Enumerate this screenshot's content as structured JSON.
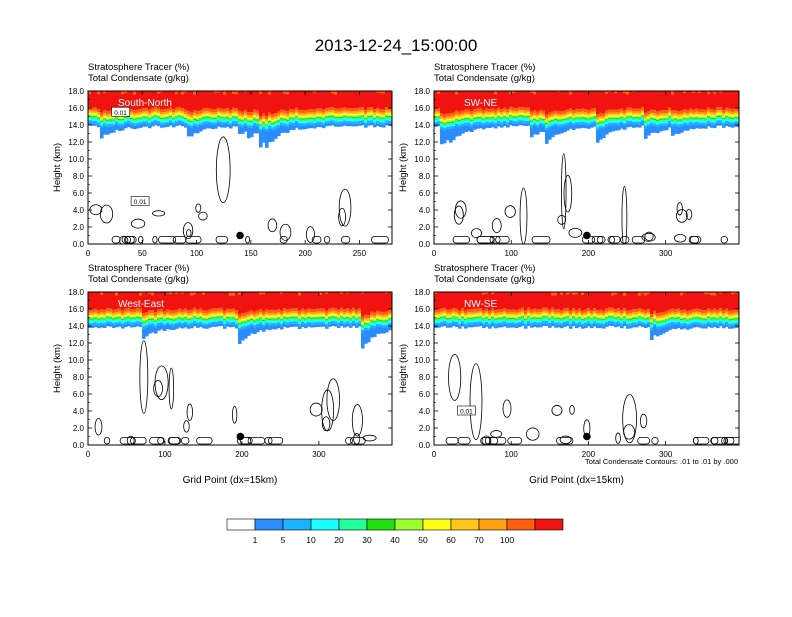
{
  "figure": {
    "title": "2013-12-24_15:00:00",
    "footnote": "Total Condensate Contours: .01 to .01 by .000"
  },
  "colorbar": {
    "labels": [
      "1",
      "5",
      "10",
      "20",
      "30",
      "40",
      "50",
      "60",
      "70",
      "100"
    ],
    "colors": [
      "#ffffff",
      "#2b8cff",
      "#1bb2ff",
      "#19ffff",
      "#23ff9a",
      "#20e012",
      "#9cff2e",
      "#ffff15",
      "#ffc61d",
      "#ffa013",
      "#ff5f0f",
      "#f0130f"
    ]
  },
  "chart_data": [
    {
      "type": "heatmap",
      "panel_label": "South-North",
      "title_lines": [
        "Stratosphere Tracer   (%)",
        "Total Condensate   (g/kg)"
      ],
      "ylabel": "Height (km)",
      "xlabel": "",
      "xlim": [
        0,
        280
      ],
      "ylim": [
        0,
        18
      ],
      "xticks": [
        0,
        50,
        100,
        150,
        200,
        250
      ],
      "yticks": [
        "0.0",
        "2.0",
        "4.0",
        "6.0",
        "8.0",
        "10.0",
        "12.0",
        "14.0",
        "16.0",
        "18.0"
      ],
      "marker_point": [
        140,
        1.0
      ],
      "contour_labels": [
        "0.01",
        "0.01"
      ]
    },
    {
      "type": "heatmap",
      "panel_label": "SW-NE",
      "title_lines": [
        "Stratosphere Tracer   (%)",
        "Total Condensate   (g/kg)"
      ],
      "ylabel": "Height (km)",
      "xlabel": "",
      "xlim": [
        0,
        395
      ],
      "ylim": [
        0,
        18
      ],
      "xticks": [
        0,
        100,
        200,
        300
      ],
      "yticks": [
        "0.0",
        "2.0",
        "4.0",
        "6.0",
        "8.0",
        "10.0",
        "12.0",
        "14.0",
        "16.0",
        "18.0"
      ],
      "marker_point": [
        198,
        1.0
      ],
      "contour_labels": []
    },
    {
      "type": "heatmap",
      "panel_label": "West-East",
      "title_lines": [
        "Stratosphere Tracer   (%)",
        "Total Condensate   (g/kg)"
      ],
      "ylabel": "Height (km)",
      "xlabel": "Grid Point (dx=15km)",
      "xlim": [
        0,
        395
      ],
      "ylim": [
        0,
        18
      ],
      "xticks": [
        0,
        100,
        200,
        300
      ],
      "yticks": [
        "0.0",
        "2.0",
        "4.0",
        "6.0",
        "8.0",
        "10.0",
        "12.0",
        "14.0",
        "16.0",
        "18.0"
      ],
      "marker_point": [
        198,
        1.0
      ],
      "contour_labels": []
    },
    {
      "type": "heatmap",
      "panel_label": "NW-SE",
      "title_lines": [
        "Stratosphere Tracer   (%)",
        "Total Condensate   (g/kg)"
      ],
      "ylabel": "Height (km)",
      "xlabel": "Grid Point (dx=15km)",
      "xlim": [
        0,
        395
      ],
      "ylim": [
        0,
        18
      ],
      "xticks": [
        0,
        100,
        200,
        300
      ],
      "yticks": [
        "0.0",
        "2.0",
        "4.0",
        "6.0",
        "8.0",
        "10.0",
        "12.0",
        "14.0",
        "16.0",
        "18.0"
      ],
      "marker_point": [
        198,
        1.0
      ],
      "contour_labels": [
        "0.01"
      ]
    }
  ]
}
